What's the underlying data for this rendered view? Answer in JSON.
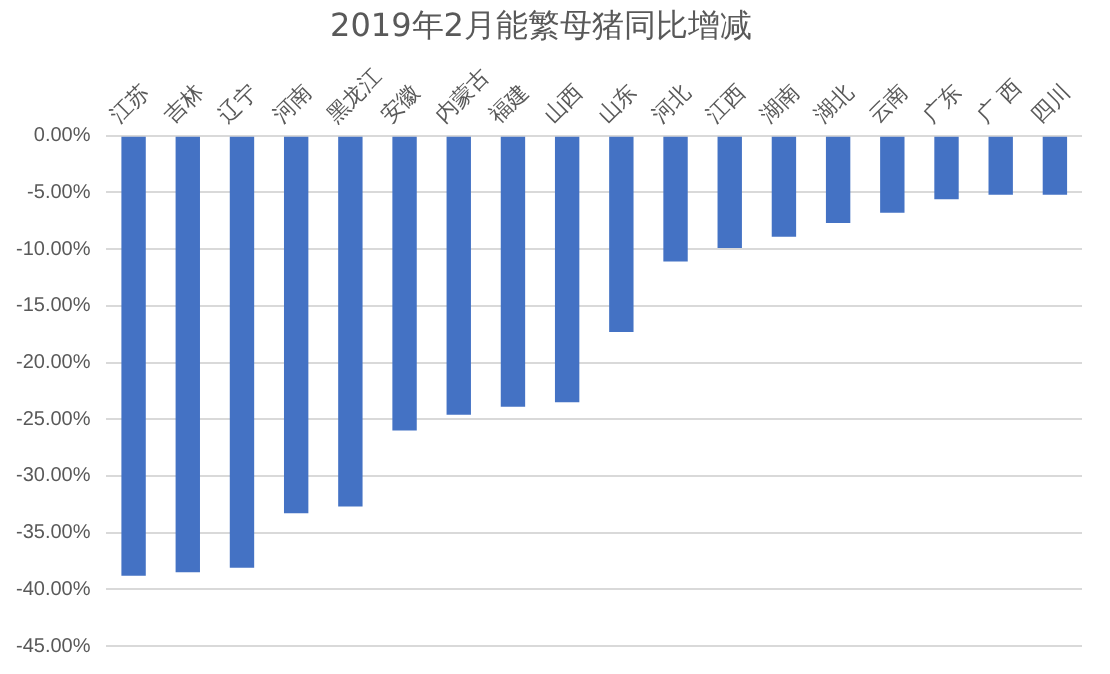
{
  "chart_data": {
    "type": "bar",
    "title": "2019年2月能繁母猪同比增减",
    "categories": [
      "江苏",
      "吉林",
      "辽宁",
      "河南",
      "黑龙江",
      "安徽",
      "内蒙古",
      "福建",
      "山西",
      "山东",
      "河北",
      "江西",
      "湖南",
      "湖北",
      "云南",
      "广东",
      "广 西",
      "四川"
    ],
    "values": [
      -38.8,
      -38.5,
      -38.1,
      -33.3,
      -32.7,
      -26.0,
      -24.6,
      -23.9,
      -23.5,
      -17.3,
      -11.1,
      -9.9,
      -8.9,
      -7.7,
      -6.8,
      -5.6,
      -5.2,
      -5.2
    ],
    "color": "#4472c4",
    "ylim": [
      -45,
      0
    ],
    "yticks": [
      {
        "value": -45,
        "label": "-45.00%"
      },
      {
        "value": -40,
        "label": "-40.00%"
      },
      {
        "value": -35,
        "label": "-35.00%"
      },
      {
        "value": -30,
        "label": "-30.00%"
      },
      {
        "value": -25,
        "label": "-25.00%"
      },
      {
        "value": -20,
        "label": "-20.00%"
      },
      {
        "value": -15,
        "label": "-15.00%"
      },
      {
        "value": -10,
        "label": "-10.00%"
      },
      {
        "value": -5,
        "label": "-5.00%"
      },
      {
        "value": 0,
        "label": "0.00%"
      }
    ],
    "grid": "y"
  }
}
